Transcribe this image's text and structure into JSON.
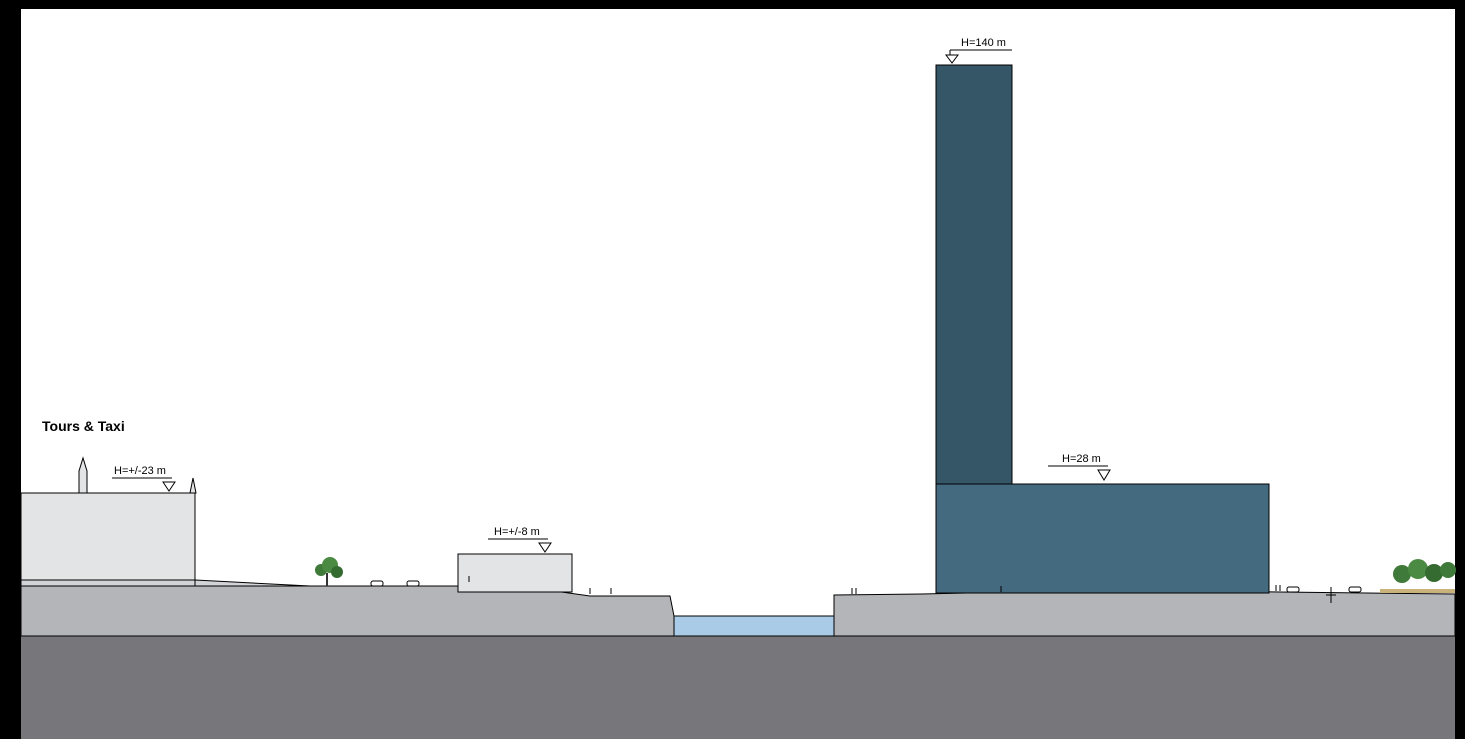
{
  "drawing": {
    "place_label": "Tours & Taxi",
    "height_marks": {
      "tours_taxi": "H=+/-23 m",
      "low_building": "H=+/-8 m",
      "tower": "H=140 m",
      "podium": "H=28 m"
    }
  },
  "colors": {
    "sky": "#ffffff",
    "frame": "#000000",
    "bedrock": "#77777b",
    "ground_section": "#b4b5b8",
    "existing_building": "#e3e4e6",
    "tower": "#355667",
    "podium": "#446a80",
    "water": "#a9cbe8",
    "tree": "#3f7a3a"
  },
  "icons": {
    "level_marker": "triangle-level-icon",
    "tree": "tree-icon",
    "car": "car-icon",
    "person": "person-icon"
  }
}
